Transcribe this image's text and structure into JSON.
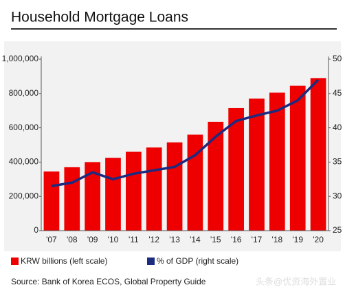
{
  "chart_data": {
    "type": "bar_line",
    "title": "Household Mortgage Loans",
    "categories": [
      "'07",
      "'08",
      "'09",
      "'10",
      "'11",
      "'12",
      "'13",
      "'14",
      "'15",
      "'16",
      "'17",
      "'18",
      "'19",
      "'20"
    ],
    "series": [
      {
        "name": "KRW billions (left scale)",
        "color": "#ee0000",
        "type": "bar",
        "values": [
          345000,
          370000,
          400000,
          425000,
          460000,
          485000,
          515000,
          560000,
          635000,
          715000,
          770000,
          805000,
          845000,
          890000
        ]
      },
      {
        "name": "% of GDP (right scale)",
        "color": "#1c2a80",
        "type": "line",
        "axis": "y2",
        "values": [
          31.5,
          32,
          33.5,
          32.5,
          33.3,
          33.8,
          34.3,
          36,
          38.7,
          41,
          41.8,
          42.5,
          44,
          47
        ]
      }
    ],
    "ylim": [
      0,
      1000000
    ],
    "yticks": [
      0,
      {
        "value": 200000,
        "label": "200,000"
      },
      {
        "value": 400000,
        "label": "400,000"
      },
      {
        "value": 600000,
        "label": "600,000"
      },
      {
        "value": 800000,
        "label": "800,000"
      },
      {
        "value": 1000000,
        "label": "1,000,000"
      }
    ],
    "y2lim": [
      25,
      50
    ],
    "y2ticks": [
      25,
      30,
      35,
      40,
      45,
      50
    ],
    "source": "Source: Bank of Korea ECOS, Global Property Guide",
    "watermark": "头条@优资海外置业"
  }
}
